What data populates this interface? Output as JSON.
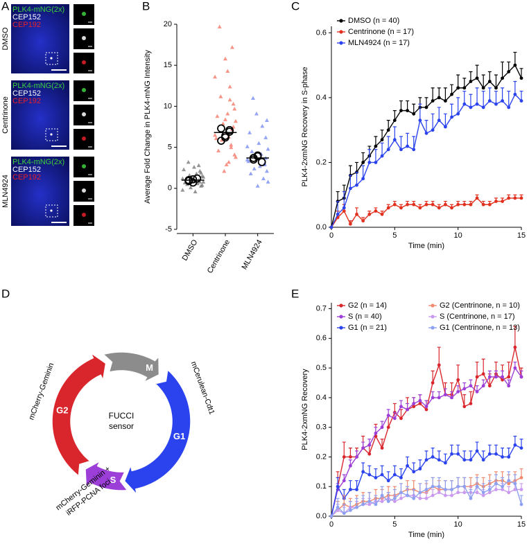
{
  "panel_labels": [
    "A",
    "B",
    "C",
    "D",
    "E"
  ],
  "microscopy": {
    "channels": [
      {
        "label": "PLK4-mNG(2x)",
        "color": "#3dd13d"
      },
      {
        "label": "CEP152",
        "color": "#ffffff"
      },
      {
        "label": "CEP192",
        "color": "#e8202a"
      }
    ],
    "conditions": [
      "DMSO",
      "Centrinone",
      "MLN4924"
    ]
  },
  "diagram": {
    "phases": [
      {
        "label": "M",
        "color": "#8c8c8c"
      },
      {
        "label": "G1",
        "color": "#2a43ef"
      },
      {
        "label": "S",
        "color": "#9c3fd8"
      },
      {
        "label": "G2",
        "color": "#d9262c"
      }
    ],
    "center": [
      "FUCCI",
      "sensor"
    ],
    "reporters": [
      "mCherry-Geminin",
      "mCerulean-Cdt1",
      "mCherry-Geminin +",
      "iRFP-PCNA foci"
    ]
  },
  "chart_data": [
    {
      "type": "strip",
      "ylabel": "Average Fold Change in PLK4-mNG Intensity",
      "categories": [
        "DMSO",
        "Centrinone",
        "MLN4924"
      ],
      "ylim": [
        -5,
        20
      ],
      "yticks": [
        -5,
        0,
        5,
        10,
        15,
        20
      ],
      "groups": [
        {
          "color": "#7a7a7a",
          "values": [
            1.2,
            0.8,
            1.5,
            0.3,
            2.1,
            1.0,
            0.6,
            1.8,
            -0.4,
            2.6,
            0.9,
            1.3,
            0.1,
            1.6,
            3.2,
            0.5,
            1.1,
            0.7,
            2.3,
            -0.2,
            1.4,
            0.4,
            1.9,
            0.8,
            2.8
          ],
          "replicates": [
            1.0,
            0.7,
            1.2,
            0.9,
            1.1
          ],
          "mean": 1.0
        },
        {
          "color": "#f47a6a",
          "values": [
            6.5,
            8.2,
            4.1,
            10.3,
            7.2,
            5.3,
            12.4,
            3.2,
            9.1,
            6.8,
            15.8,
            2.1,
            7.9,
            5.9,
            11.2,
            19.7,
            4.6,
            8.8,
            6.1,
            13.6,
            3.8,
            9.7,
            7.5,
            17.2,
            5.0,
            10.8,
            6.3,
            14.3,
            2.9,
            8.4
          ],
          "replicates": [
            7.3,
            6.4,
            6.9,
            5.8,
            6.2,
            7.1
          ],
          "mean": 6.8
        },
        {
          "color": "#7a8ff0",
          "values": [
            3.5,
            4.8,
            2.1,
            6.2,
            3.0,
            1.2,
            7.6,
            4.2,
            2.7,
            5.5,
            0.3,
            9.1,
            3.9,
            2.4,
            11.0,
            4.5,
            1.8,
            6.8,
            3.3,
            5.1,
            0.8,
            8.3,
            3.7,
            2.9
          ],
          "replicates": [
            3.7,
            4.0,
            3.2,
            3.5,
            3.9
          ],
          "mean": 3.7
        }
      ]
    },
    {
      "type": "line",
      "ylabel": "PLK4-2xmNG Recovery in S-phase",
      "xlabel": "Time (min)",
      "legend": "upper left",
      "xlim": [
        0,
        15
      ],
      "xticks": [
        0,
        5,
        10,
        15
      ],
      "ylim": [
        0,
        0.62
      ],
      "yticks": [
        {
          "value": 0,
          "label": "0.0"
        },
        0.2,
        0.4,
        0.6
      ],
      "x": [
        0,
        0.5,
        1,
        1.5,
        2,
        2.5,
        3,
        3.5,
        4,
        4.5,
        5,
        5.5,
        6,
        6.5,
        7,
        7.5,
        8,
        8.5,
        9,
        9.5,
        10,
        10.5,
        11,
        11.5,
        12,
        12.5,
        13,
        13.5,
        14,
        14.5,
        15
      ],
      "series": [
        {
          "name": "DMSO (n = 40)",
          "color": "#000000",
          "values": [
            0,
            0.08,
            0.09,
            0.16,
            0.17,
            0.2,
            0.22,
            0.25,
            0.27,
            0.3,
            0.33,
            0.36,
            0.36,
            0.35,
            0.37,
            0.37,
            0.39,
            0.4,
            0.39,
            0.41,
            0.43,
            0.43,
            0.45,
            0.46,
            0.43,
            0.45,
            0.43,
            0.46,
            0.48,
            0.5,
            0.46
          ],
          "errors": [
            0,
            0.03,
            0.04,
            0.03,
            0.03,
            0.03,
            0.03,
            0.03,
            0.03,
            0.03,
            0.03,
            0.03,
            0.03,
            0.03,
            0.03,
            0.03,
            0.04,
            0.03,
            0.04,
            0.03,
            0.04,
            0.03,
            0.03,
            0.04,
            0.04,
            0.03,
            0.04,
            0.05,
            0.03,
            0.04,
            0.03
          ]
        },
        {
          "name": "Centrinone (n = 17)",
          "color": "#e2301e",
          "values": [
            0,
            0.03,
            0.05,
            0.01,
            0.04,
            0.02,
            0.04,
            0.05,
            0.04,
            0.06,
            0.07,
            0.06,
            0.07,
            0.07,
            0.06,
            0.07,
            0.07,
            0.06,
            0.07,
            0.06,
            0.07,
            0.07,
            0.07,
            0.09,
            0.07,
            0.07,
            0.08,
            0.08,
            0.09,
            0.09,
            0.09
          ],
          "errors": [
            0,
            0.02,
            0.02,
            0.01,
            0.02,
            0.01,
            0.01,
            0.01,
            0.01,
            0.01,
            0.01,
            0.01,
            0.01,
            0.01,
            0.01,
            0.01,
            0.01,
            0.01,
            0.01,
            0.01,
            0.01,
            0.01,
            0.01,
            0.01,
            0.01,
            0.01,
            0.01,
            0.01,
            0.01,
            0.01,
            0.01
          ]
        },
        {
          "name": "MLN4924 (n = 17)",
          "color": "#2a43ef",
          "values": [
            0,
            0.04,
            0.06,
            0.12,
            0.13,
            0.15,
            0.2,
            0.2,
            0.22,
            0.24,
            0.27,
            0.24,
            0.25,
            0.24,
            0.33,
            0.29,
            0.3,
            0.33,
            0.31,
            0.34,
            0.35,
            0.38,
            0.37,
            0.38,
            0.37,
            0.39,
            0.38,
            0.39,
            0.37,
            0.41,
            0.39
          ],
          "errors": [
            0,
            0.04,
            0.05,
            0.04,
            0.04,
            0.04,
            0.04,
            0.04,
            0.04,
            0.04,
            0.04,
            0.04,
            0.04,
            0.04,
            0.05,
            0.04,
            0.05,
            0.04,
            0.04,
            0.04,
            0.05,
            0.04,
            0.04,
            0.05,
            0.05,
            0.04,
            0.04,
            0.04,
            0.05,
            0.04,
            0.03
          ]
        }
      ]
    },
    {
      "type": "line",
      "ylabel": "PLK4-2xmNG Recovery",
      "xlabel": "Time (min)",
      "legend": "upper left",
      "xlim": [
        0,
        15
      ],
      "xticks": [
        0,
        5,
        10,
        15
      ],
      "ylim": [
        0,
        0.72
      ],
      "yticks": [
        {
          "value": 0,
          "label": "0.0"
        },
        0.1,
        0.2,
        0.3,
        0.4,
        0.5,
        0.6,
        0.7
      ],
      "x": [
        0,
        0.5,
        1,
        1.5,
        2,
        2.5,
        3,
        3.5,
        4,
        4.5,
        5,
        5.5,
        6,
        6.5,
        7,
        7.5,
        8,
        8.5,
        9,
        9.5,
        10,
        10.5,
        11,
        11.5,
        12,
        12.5,
        13,
        13.5,
        14,
        14.5,
        15
      ],
      "series": [
        {
          "name": "G2 (n = 14)",
          "color": "#d9262c",
          "values": [
            0,
            0.1,
            0.2,
            0.2,
            0.2,
            0.23,
            0.21,
            0.27,
            0.23,
            0.3,
            0.35,
            0.33,
            0.36,
            0.37,
            0.38,
            0.36,
            0.45,
            0.51,
            0.41,
            0.41,
            0.46,
            0.37,
            0.38,
            0.47,
            0.48,
            0.44,
            0.48,
            0.46,
            0.47,
            0.57,
            0.47
          ],
          "errors": [
            0,
            0.05,
            0.05,
            0.03,
            0.03,
            0.04,
            0.03,
            0.04,
            0.03,
            0.04,
            0.03,
            0.03,
            0.04,
            0.03,
            0.03,
            0.03,
            0.04,
            0.06,
            0.04,
            0.04,
            0.05,
            0.04,
            0.04,
            0.05,
            0.05,
            0.04,
            0.04,
            0.05,
            0.05,
            0.07,
            0.03
          ]
        },
        {
          "name": "S  (n = 40)",
          "color": "#9c3fd8",
          "values": [
            0,
            0.09,
            0.12,
            0.17,
            0.2,
            0.23,
            0.24,
            0.28,
            0.3,
            0.34,
            0.33,
            0.37,
            0.36,
            0.38,
            0.39,
            0.37,
            0.4,
            0.4,
            0.41,
            0.4,
            0.42,
            0.43,
            0.44,
            0.42,
            0.44,
            0.47,
            0.47,
            0.47,
            0.44,
            0.5,
            0.47
          ],
          "errors": [
            0,
            0.02,
            0.02,
            0.02,
            0.02,
            0.02,
            0.02,
            0.02,
            0.02,
            0.02,
            0.02,
            0.02,
            0.02,
            0.02,
            0.02,
            0.02,
            0.02,
            0.02,
            0.02,
            0.02,
            0.02,
            0.02,
            0.02,
            0.02,
            0.02,
            0.02,
            0.02,
            0.02,
            0.02,
            0.02,
            0.02
          ]
        },
        {
          "name": "G1 (n = 21)",
          "color": "#2a43ef",
          "values": [
            0,
            0.1,
            0.06,
            0.09,
            0.09,
            0.15,
            0.14,
            0.13,
            0.14,
            0.12,
            0.14,
            0.13,
            0.17,
            0.15,
            0.16,
            0.19,
            0.2,
            0.19,
            0.18,
            0.21,
            0.21,
            0.19,
            0.19,
            0.22,
            0.19,
            0.21,
            0.21,
            0.2,
            0.2,
            0.24,
            0.23
          ],
          "errors": [
            0,
            0.03,
            0.03,
            0.03,
            0.03,
            0.03,
            0.03,
            0.03,
            0.03,
            0.03,
            0.03,
            0.03,
            0.03,
            0.03,
            0.03,
            0.03,
            0.03,
            0.03,
            0.03,
            0.03,
            0.03,
            0.03,
            0.03,
            0.03,
            0.03,
            0.03,
            0.03,
            0.03,
            0.03,
            0.03,
            0.03
          ]
        },
        {
          "name": "G2 (Centrinone, n = 10)",
          "color": "#f08a6e",
          "values": [
            0,
            0.02,
            0.04,
            0.03,
            0.04,
            0.05,
            0.05,
            0.06,
            0.06,
            0.07,
            0.07,
            0.08,
            0.09,
            0.09,
            0.08,
            0.08,
            0.1,
            0.09,
            0.09,
            0.09,
            0.1,
            0.1,
            0.1,
            0.11,
            0.1,
            0.11,
            0.12,
            0.12,
            0.11,
            0.12,
            0.13
          ],
          "errors": [
            0,
            0.03,
            0.03,
            0.03,
            0.03,
            0.03,
            0.03,
            0.03,
            0.03,
            0.03,
            0.03,
            0.03,
            0.03,
            0.03,
            0.03,
            0.03,
            0.03,
            0.03,
            0.03,
            0.03,
            0.03,
            0.03,
            0.03,
            0.03,
            0.03,
            0.03,
            0.03,
            0.03,
            0.03,
            0.03,
            0.03
          ]
        },
        {
          "name": "S (Centrinone, n = 17)",
          "color": "#c99af0",
          "values": [
            0,
            0.02,
            0.01,
            0.03,
            0.03,
            0.04,
            0.04,
            0.05,
            0.05,
            0.06,
            0.05,
            0.06,
            0.07,
            0.07,
            0.06,
            0.06,
            0.07,
            0.08,
            0.07,
            0.07,
            0.08,
            0.08,
            0.08,
            0.08,
            0.07,
            0.08,
            0.09,
            0.09,
            0.08,
            0.09,
            0.09
          ],
          "errors": [
            0,
            0.02,
            0.02,
            0.02,
            0.02,
            0.02,
            0.02,
            0.02,
            0.02,
            0.02,
            0.02,
            0.02,
            0.02,
            0.02,
            0.02,
            0.02,
            0.02,
            0.02,
            0.02,
            0.02,
            0.02,
            0.02,
            0.02,
            0.02,
            0.02,
            0.02,
            0.02,
            0.02,
            0.02,
            0.02,
            0.02
          ]
        },
        {
          "name": "G1 (Centrinone, n = 13)",
          "color": "#8ea0f0",
          "values": [
            0,
            0.03,
            0.01,
            0.02,
            0.03,
            0.04,
            0.05,
            0.04,
            0.07,
            0.05,
            0.06,
            0.08,
            0.07,
            0.06,
            0.08,
            0.09,
            0.1,
            0.1,
            0.09,
            0.09,
            0.1,
            0.1,
            0.06,
            0.1,
            0.08,
            0.09,
            0.11,
            0.1,
            0.12,
            0.11,
            0.04
          ],
          "errors": [
            0,
            0.03,
            0.03,
            0.03,
            0.03,
            0.03,
            0.03,
            0.03,
            0.03,
            0.03,
            0.03,
            0.03,
            0.03,
            0.03,
            0.03,
            0.03,
            0.03,
            0.03,
            0.03,
            0.03,
            0.03,
            0.03,
            0.03,
            0.03,
            0.03,
            0.03,
            0.03,
            0.03,
            0.03,
            0.03,
            0.03
          ]
        }
      ]
    }
  ]
}
